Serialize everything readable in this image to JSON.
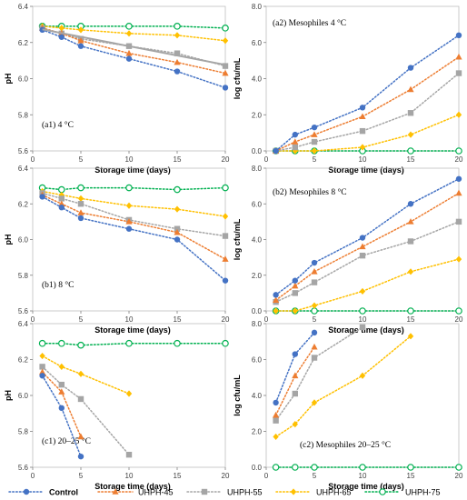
{
  "chart_data": [
    {
      "id": "a1",
      "type": "line",
      "tag": "(a1) 4 °C",
      "xlabel": "Storage time (days)",
      "ylabel": "pH",
      "xlim": [
        0,
        20
      ],
      "ylim": [
        5.6,
        6.4
      ],
      "xticks": [
        0,
        5,
        10,
        15,
        20
      ],
      "yticks": [
        5.6,
        5.8,
        6.0,
        6.2,
        6.4
      ],
      "x": [
        1,
        3,
        5,
        10,
        15,
        20
      ],
      "series": [
        {
          "name": "Control",
          "values": [
            6.27,
            6.23,
            6.18,
            6.11,
            6.04,
            5.95
          ]
        },
        {
          "name": "UHPH-45",
          "values": [
            6.28,
            6.25,
            6.21,
            6.14,
            6.09,
            6.03
          ]
        },
        {
          "name": "UHPH-55",
          "values": [
            6.28,
            6.25,
            6.22,
            6.18,
            6.14,
            6.07
          ]
        },
        {
          "name": "UHPH-65",
          "values": [
            6.29,
            6.28,
            6.27,
            6.25,
            6.24,
            6.21
          ]
        },
        {
          "name": "UHPH-75",
          "values": [
            6.29,
            6.29,
            6.29,
            6.29,
            6.29,
            6.28
          ]
        }
      ],
      "tag_pos": "bottom-left"
    },
    {
      "id": "a2",
      "type": "line",
      "tag": "(a2) Mesophiles 4 °C",
      "xlabel": "Storage time (days)",
      "ylabel": "log cfu/mL",
      "xlim": [
        0,
        20
      ],
      "ylim": [
        0,
        8
      ],
      "xticks": [
        0,
        5,
        10,
        15,
        20
      ],
      "yticks": [
        0,
        2,
        4,
        6,
        8
      ],
      "x": [
        1,
        3,
        5,
        10,
        15,
        20
      ],
      "series": [
        {
          "name": "Control",
          "values": [
            0,
            0.9,
            1.3,
            2.4,
            4.6,
            6.4
          ]
        },
        {
          "name": "UHPH-45",
          "values": [
            0,
            0.5,
            0.9,
            1.9,
            3.4,
            5.2
          ]
        },
        {
          "name": "UHPH-55",
          "values": [
            0,
            0.2,
            0.5,
            1.1,
            2.1,
            4.3
          ]
        },
        {
          "name": "UHPH-65",
          "values": [
            0,
            0,
            0,
            0.2,
            0.9,
            2.0
          ]
        },
        {
          "name": "UHPH-75",
          "values": [
            0,
            0,
            0,
            0,
            0,
            0
          ]
        }
      ],
      "tag_pos": "top-left"
    },
    {
      "id": "b1",
      "type": "line",
      "tag": "(b1) 8 °C",
      "xlabel": "Storage time (days)",
      "ylabel": "pH",
      "xlim": [
        0,
        20
      ],
      "ylim": [
        5.6,
        6.4
      ],
      "xticks": [
        0,
        5,
        10,
        15,
        20
      ],
      "yticks": [
        5.6,
        5.8,
        6.0,
        6.2,
        6.4
      ],
      "x": [
        1,
        3,
        5,
        10,
        15,
        20
      ],
      "series": [
        {
          "name": "Control",
          "values": [
            6.24,
            6.18,
            6.12,
            6.06,
            6.0,
            5.77
          ]
        },
        {
          "name": "UHPH-45",
          "values": [
            6.25,
            6.2,
            6.15,
            6.1,
            6.04,
            5.89
          ]
        },
        {
          "name": "UHPH-55",
          "values": [
            6.26,
            6.23,
            6.2,
            6.11,
            6.06,
            6.02
          ]
        },
        {
          "name": "UHPH-65",
          "values": [
            6.27,
            6.25,
            6.23,
            6.19,
            6.17,
            6.13
          ]
        },
        {
          "name": "UHPH-75",
          "values": [
            6.29,
            6.28,
            6.29,
            6.29,
            6.28,
            6.29
          ]
        }
      ],
      "tag_pos": "bottom-left"
    },
    {
      "id": "b2",
      "type": "line",
      "tag": "(b2) Mesophiles 8 °C",
      "xlabel": "Storage time (days)",
      "ylabel": "log cfu/mL",
      "xlim": [
        0,
        20
      ],
      "ylim": [
        0,
        8
      ],
      "xticks": [
        0,
        5,
        10,
        15,
        20
      ],
      "yticks": [
        0,
        2,
        4,
        6,
        8
      ],
      "x": [
        1,
        3,
        5,
        10,
        15,
        20
      ],
      "series": [
        {
          "name": "Control",
          "values": [
            0.9,
            1.7,
            2.7,
            4.1,
            6.0,
            7.4
          ]
        },
        {
          "name": "UHPH-45",
          "values": [
            0.6,
            1.4,
            2.2,
            3.6,
            5.0,
            6.6
          ]
        },
        {
          "name": "UHPH-55",
          "values": [
            0.5,
            1.0,
            1.6,
            3.1,
            3.9,
            5.0
          ]
        },
        {
          "name": "UHPH-65",
          "values": [
            0,
            0,
            0.3,
            1.1,
            2.2,
            2.9
          ]
        },
        {
          "name": "UHPH-75",
          "values": [
            0,
            0,
            0,
            0,
            0,
            0
          ]
        }
      ],
      "tag_pos": "top-left"
    },
    {
      "id": "c1",
      "type": "line",
      "tag": "(c1) 20–25 °C",
      "xlabel": "Storage time (days)",
      "ylabel": "pH",
      "xlim": [
        0,
        20
      ],
      "ylim": [
        5.6,
        6.4
      ],
      "xticks": [
        0,
        5,
        10,
        15,
        20
      ],
      "yticks": [
        5.6,
        5.8,
        6.0,
        6.2,
        6.4
      ],
      "series": [
        {
          "name": "Control",
          "x": [
            1,
            3,
            5
          ],
          "values": [
            6.11,
            5.93,
            5.66
          ]
        },
        {
          "name": "UHPH-45",
          "x": [
            1,
            3,
            5
          ],
          "values": [
            6.13,
            6.02,
            5.77
          ]
        },
        {
          "name": "UHPH-55",
          "x": [
            1,
            3,
            5,
            10
          ],
          "values": [
            6.16,
            6.06,
            5.98,
            5.67
          ]
        },
        {
          "name": "UHPH-65",
          "x": [
            1,
            3,
            5,
            10
          ],
          "values": [
            6.22,
            6.16,
            6.12,
            6.01
          ]
        },
        {
          "name": "UHPH-75",
          "x": [
            1,
            3,
            5,
            10,
            15,
            20
          ],
          "values": [
            6.29,
            6.29,
            6.28,
            6.29,
            6.29,
            6.29
          ]
        }
      ],
      "tag_pos": "bottom-left"
    },
    {
      "id": "c2",
      "type": "line",
      "tag": "(c2) Mesophiles 20–25 °C",
      "xlabel": "Storage time (days)",
      "ylabel": "log cfu/mL",
      "xlim": [
        0,
        20
      ],
      "ylim": [
        0,
        8
      ],
      "xticks": [
        0,
        5,
        10,
        15,
        20
      ],
      "yticks": [
        0,
        2,
        4,
        6,
        8
      ],
      "series": [
        {
          "name": "Control",
          "x": [
            1,
            3,
            5
          ],
          "values": [
            3.6,
            6.3,
            7.5
          ]
        },
        {
          "name": "UHPH-45",
          "x": [
            1,
            3,
            5
          ],
          "values": [
            2.9,
            5.1,
            6.7
          ]
        },
        {
          "name": "UHPH-55",
          "x": [
            1,
            3,
            5,
            10
          ],
          "values": [
            2.6,
            4.1,
            6.1,
            7.8
          ]
        },
        {
          "name": "UHPH-65",
          "x": [
            1,
            3,
            5,
            10,
            15
          ],
          "values": [
            1.7,
            2.4,
            3.6,
            5.1,
            7.3
          ]
        },
        {
          "name": "UHPH-75",
          "x": [
            1,
            3,
            5,
            10,
            15,
            20
          ],
          "values": [
            0,
            0,
            0,
            0,
            0,
            0
          ]
        }
      ],
      "tag_pos": "bottom-right"
    }
  ],
  "legend": {
    "placement": "bottom",
    "entries": [
      {
        "name": "Control",
        "color": "#4472C4",
        "marker": "circle"
      },
      {
        "name": "UHPH-45",
        "color": "#ED7D31",
        "marker": "triangle"
      },
      {
        "name": "UHPH-55",
        "color": "#A5A5A5",
        "marker": "square"
      },
      {
        "name": "UHPH-65",
        "color": "#FFC000",
        "marker": "diamond"
      },
      {
        "name": "UHPH-75",
        "color": "#00B050",
        "marker": "open-circle"
      }
    ]
  },
  "trendline": {
    "panel": "a1",
    "series": "UHPH-55",
    "color": "#A5A5A5"
  }
}
